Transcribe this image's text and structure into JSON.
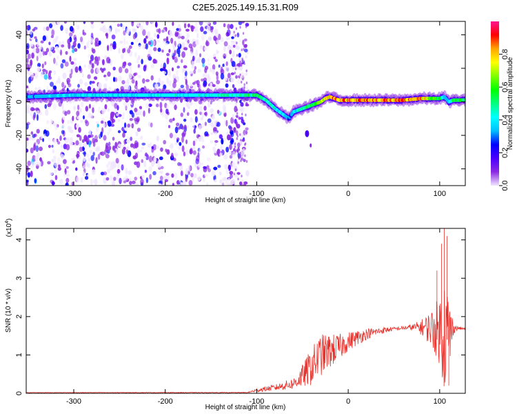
{
  "title": "C2E5.2025.149.15.31.R09",
  "chart_data": [
    {
      "type": "heatmap",
      "xlabel": "Height of straight line (km)",
      "ylabel": "Frequency (Hz)",
      "xlim": [
        -352,
        128
      ],
      "ylim": [
        -50,
        48
      ],
      "x_ticks": [
        -300,
        -200,
        -100,
        0,
        100
      ],
      "x_tick_labels": [
        "-300",
        "-200",
        "-100",
        "0",
        "100"
      ],
      "y_ticks": [
        -40,
        -20,
        0,
        20,
        40
      ],
      "y_tick_labels": [
        "-40",
        "-20",
        "0",
        "20",
        "40"
      ],
      "colorbar": {
        "label": "Normalized spectral amplitude",
        "range": [
          0,
          1
        ],
        "ticks": [
          0,
          0.2,
          0.4,
          0.6,
          0.8
        ],
        "tick_labels": [
          "0.0",
          "0.2",
          "0.4",
          "0.6",
          "0.8"
        ],
        "colors": [
          "#f0e6ff",
          "#8a2be2",
          "#4b00ff",
          "#0000ff",
          "#00bfff",
          "#00ffff",
          "#00ff7f",
          "#00ff00",
          "#7fff00",
          "#ffff00",
          "#ffa500",
          "#ff0000",
          "#ff1493"
        ]
      },
      "ridge": {
        "x": [
          -352,
          -300,
          -250,
          -200,
          -150,
          -120,
          -100,
          -90,
          -80,
          -70,
          -65,
          -60,
          -55,
          -50,
          -45,
          -40,
          -35,
          -30,
          -25,
          -20,
          -15,
          -10,
          0,
          20,
          40,
          60,
          80,
          90,
          100,
          105,
          110,
          115,
          128
        ],
        "y": [
          3,
          4,
          4,
          4,
          4,
          4,
          4,
          1,
          -4,
          -8,
          -10,
          -6,
          -5,
          -4,
          -3,
          -2,
          -1,
          0,
          2,
          3,
          2,
          1,
          1,
          1,
          1,
          1,
          2,
          2,
          2,
          3,
          0,
          1,
          1
        ],
        "amplitude": [
          0.35,
          0.4,
          0.42,
          0.45,
          0.45,
          0.5,
          0.55,
          0.5,
          0.45,
          0.4,
          0.35,
          0.35,
          0.45,
          0.5,
          0.55,
          0.6,
          0.65,
          0.75,
          0.8,
          0.85,
          0.9,
          0.9,
          0.9,
          0.9,
          0.9,
          0.9,
          0.85,
          0.7,
          0.6,
          0.4,
          0.35,
          0.55,
          0.6
        ]
      },
      "noise_x_range": [
        -352,
        -110
      ],
      "blob": {
        "x": -45,
        "y": -19
      }
    },
    {
      "type": "line",
      "xlabel": "Height of straight line (km)",
      "ylabel": "SNR (10 * v/v)",
      "y_multiplier_label": "(x10",
      "y_multiplier_exp": "4",
      "xlim": [
        -352,
        128
      ],
      "ylim": [
        0,
        4.3
      ],
      "x_ticks": [
        -300,
        -200,
        -100,
        0,
        100
      ],
      "x_tick_labels": [
        "-300",
        "-200",
        "-100",
        "0",
        "100"
      ],
      "y_ticks": [
        0,
        1,
        2,
        3,
        4
      ],
      "y_tick_labels": [
        "0",
        "1",
        "2",
        "3",
        "4"
      ],
      "line_color": "#e8302a",
      "envelope": {
        "x": [
          -352,
          -110,
          -100,
          -80,
          -60,
          -50,
          -40,
          -30,
          -20,
          -10,
          0,
          10,
          20,
          30,
          40,
          50,
          60,
          70,
          80,
          90,
          100,
          105,
          110,
          115,
          120,
          128
        ],
        "y": [
          0.02,
          0.02,
          0.08,
          0.15,
          0.25,
          0.45,
          0.7,
          1.0,
          1.1,
          1.2,
          1.35,
          1.45,
          1.55,
          1.6,
          1.65,
          1.68,
          1.7,
          1.72,
          1.72,
          1.7,
          1.65,
          1.6,
          1.5,
          1.7,
          1.7,
          1.68
        ],
        "noise": [
          0.005,
          0.01,
          0.05,
          0.08,
          0.15,
          0.3,
          0.5,
          0.55,
          0.45,
          0.35,
          0.25,
          0.2,
          0.15,
          0.1,
          0.08,
          0.05,
          0.05,
          0.08,
          0.2,
          0.45,
          0.9,
          1.6,
          1.2,
          0.15,
          0.05,
          0.03
        ]
      },
      "spikes": [
        {
          "x": 97,
          "y": 3.2
        },
        {
          "x": 102,
          "y": 3.9
        },
        {
          "x": 105,
          "y": 4.3
        },
        {
          "x": 108,
          "y": 4.1
        },
        {
          "x": 103,
          "y": 0.45
        },
        {
          "x": 110,
          "y": 0.2
        }
      ]
    }
  ]
}
